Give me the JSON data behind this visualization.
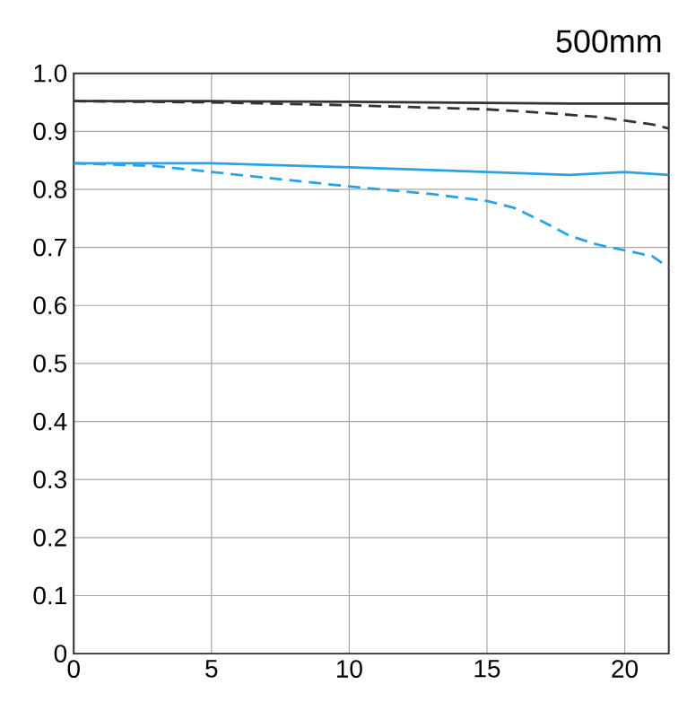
{
  "chart_data": {
    "type": "line",
    "title": "500mm",
    "xlim": [
      0,
      21.6
    ],
    "xticks": [
      0,
      5,
      10,
      15,
      20
    ],
    "ylim": [
      0,
      1.0
    ],
    "yticks": [
      0,
      {
        "value": 0.1,
        "label": "0.1"
      },
      {
        "value": 0.2,
        "label": "0.2"
      },
      {
        "value": 0.3,
        "label": "0.3"
      },
      {
        "value": 0.4,
        "label": "0.4"
      },
      {
        "value": 0.5,
        "label": "0.5"
      },
      {
        "value": 0.6,
        "label": "0.6"
      },
      {
        "value": 0.7,
        "label": "0.7"
      },
      {
        "value": 0.8,
        "label": "0.8"
      },
      {
        "value": 0.9,
        "label": "0.9"
      },
      {
        "value": 1.0,
        "label": "1.0"
      }
    ],
    "grid": true,
    "marker": "none",
    "series": [
      {
        "color": "#333333",
        "line_style": "solid",
        "x": [
          0,
          5,
          10,
          15,
          18,
          21.6
        ],
        "values": [
          0.952,
          0.952,
          0.951,
          0.949,
          0.948,
          0.948
        ]
      },
      {
        "color": "#333333",
        "line_style": "dashed",
        "x": [
          0,
          5,
          10,
          15,
          17,
          19,
          21,
          21.6
        ],
        "values": [
          0.952,
          0.95,
          0.945,
          0.938,
          0.932,
          0.925,
          0.912,
          0.905
        ]
      },
      {
        "color": "#29a3e6",
        "line_style": "solid",
        "x": [
          0,
          5,
          10,
          15,
          18,
          20,
          21.6
        ],
        "values": [
          0.845,
          0.845,
          0.838,
          0.83,
          0.825,
          0.83,
          0.825
        ]
      },
      {
        "color": "#29a3e6",
        "line_style": "dashed",
        "x": [
          0,
          3,
          5,
          10,
          13,
          15,
          16,
          17,
          18,
          19,
          21,
          21.6
        ],
        "values": [
          0.845,
          0.84,
          0.83,
          0.805,
          0.792,
          0.78,
          0.768,
          0.745,
          0.72,
          0.705,
          0.685,
          0.665
        ]
      }
    ]
  }
}
